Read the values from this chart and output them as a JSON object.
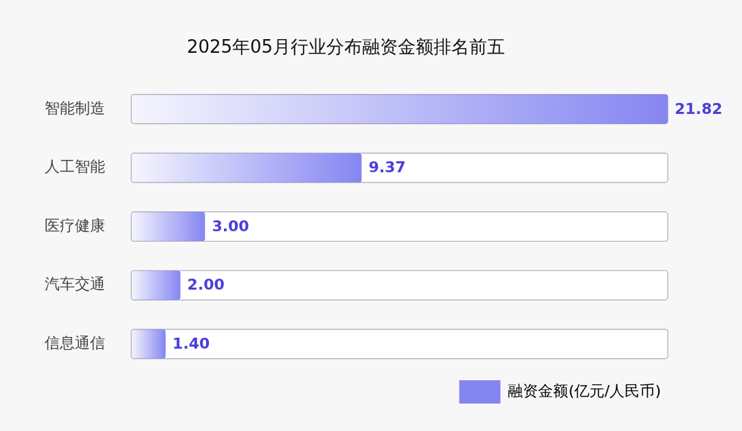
{
  "chart_data": {
    "type": "bar",
    "orientation": "horizontal",
    "title": "2025年05月行业分布融资金额排名前五",
    "categories": [
      "智能制造",
      "人工智能",
      "医疗健康",
      "汽车交通",
      "信息通信"
    ],
    "series": [
      {
        "name": "融资金额(亿元/人民币)",
        "color": "#8585f2",
        "values": [
          21.82,
          9.37,
          3.0,
          2.0,
          1.4
        ],
        "value_labels": [
          "21.82",
          "9.37",
          "3.00",
          "2.00",
          "1.40"
        ]
      }
    ],
    "legend": "bottom right"
  }
}
